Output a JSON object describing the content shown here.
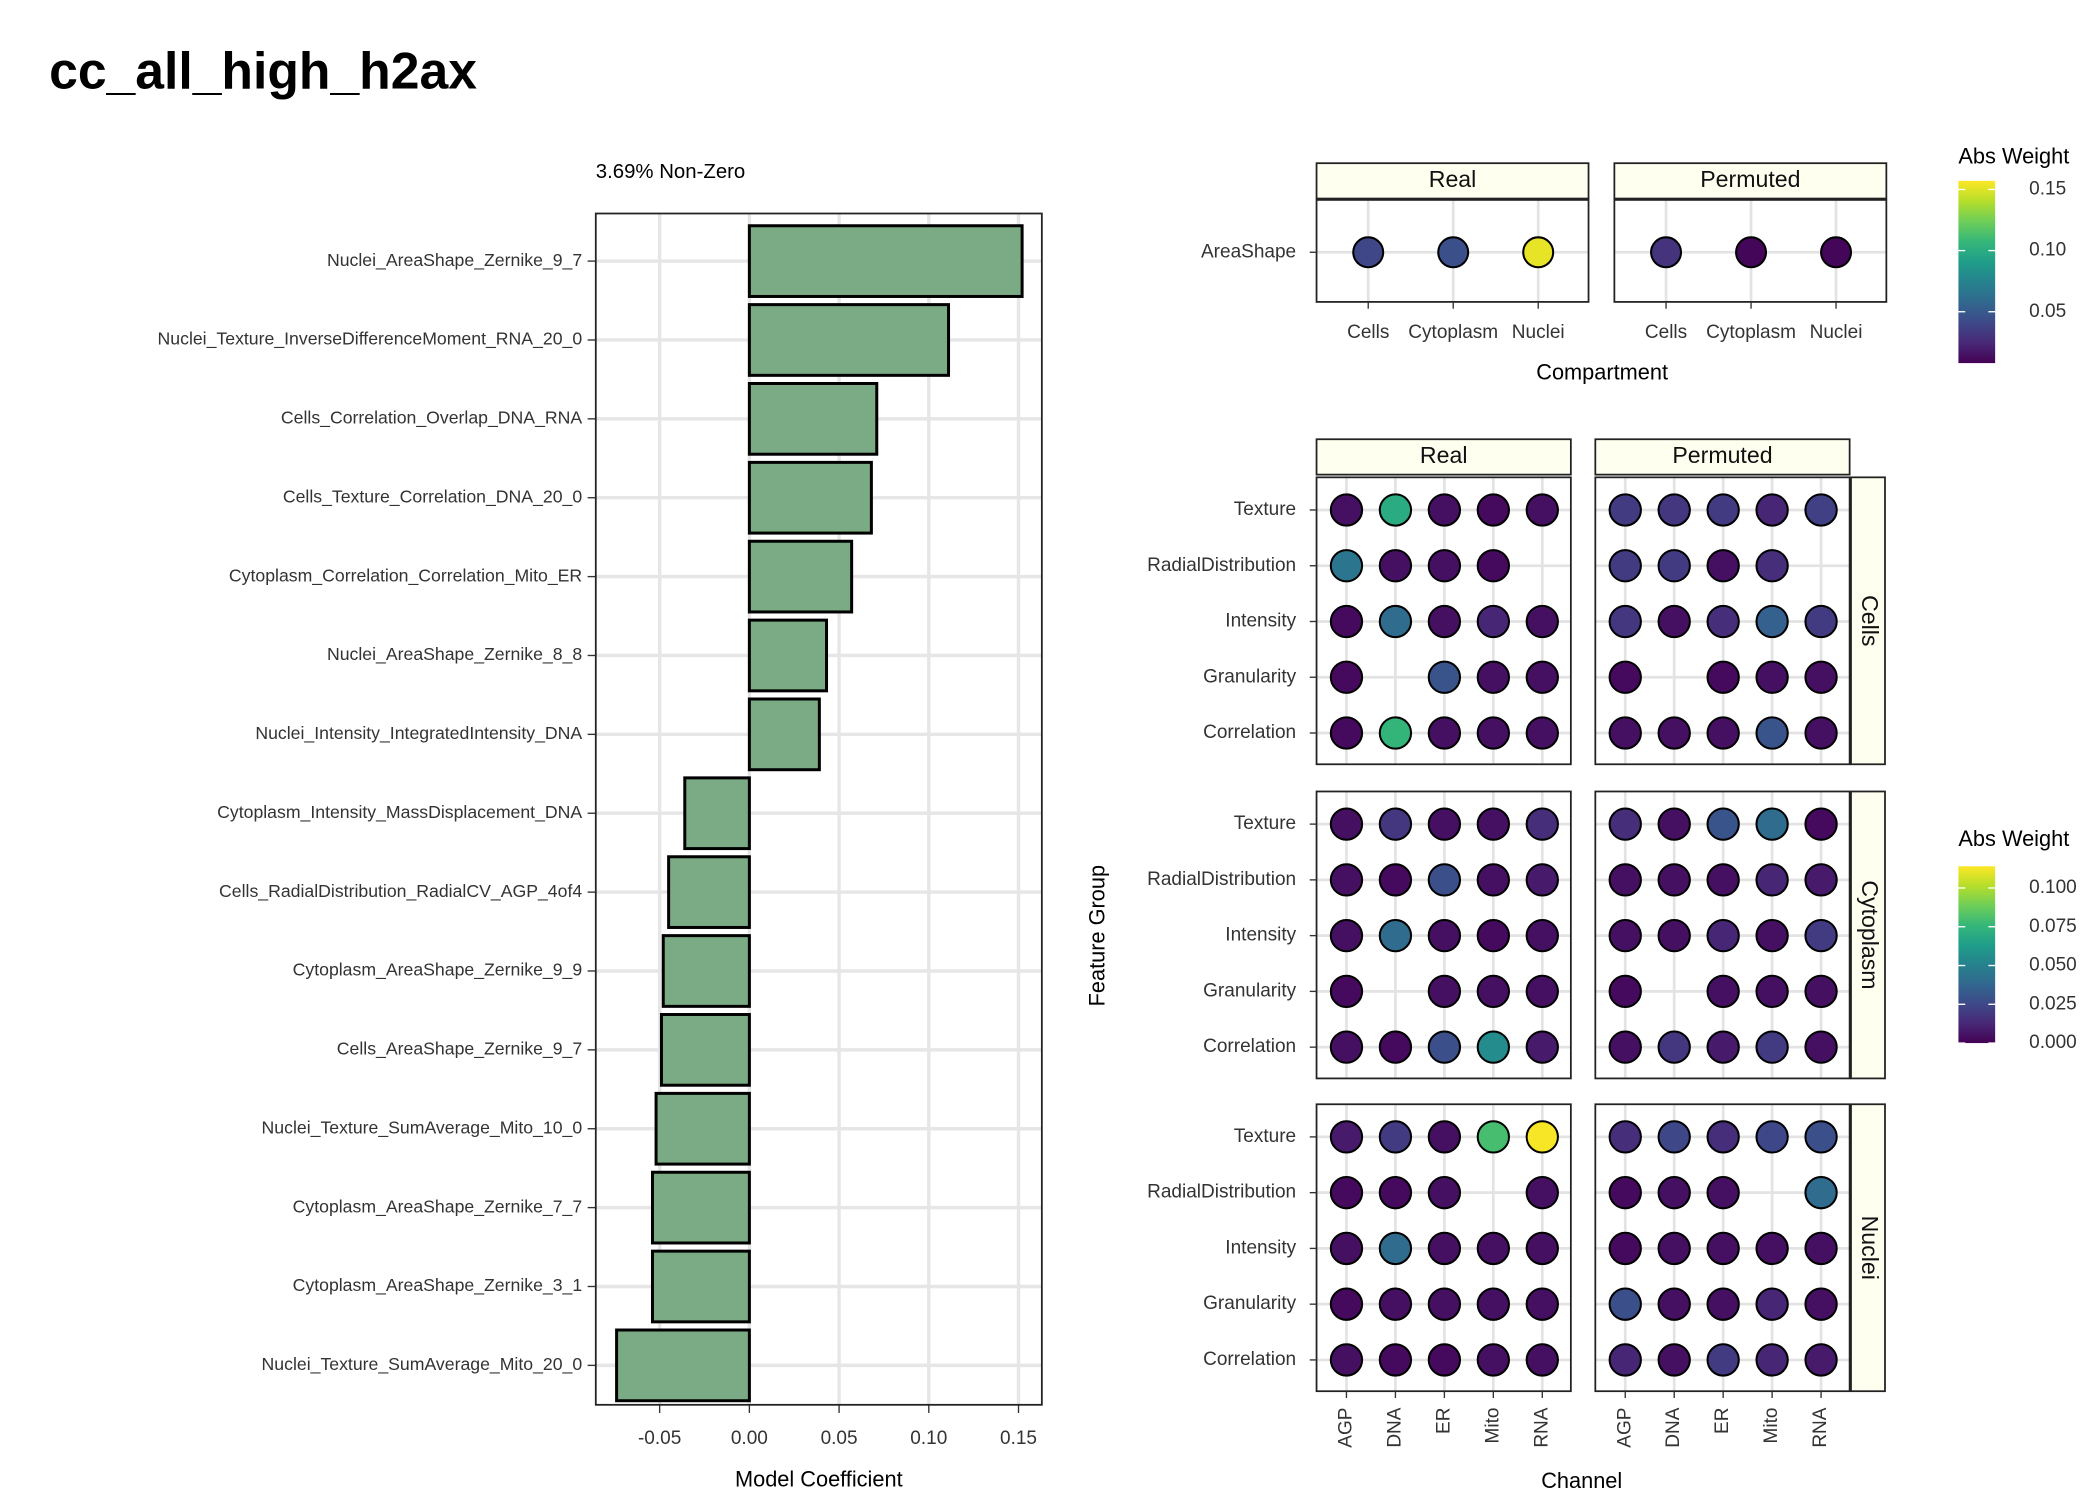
{
  "title": "cc_all_high_h2ax",
  "chart_data": [
    {
      "type": "bar",
      "orientation": "horizontal",
      "subtitle": "3.69% Non-Zero",
      "x_label": "Model Coefficient",
      "categories": [
        "Nuclei_AreaShape_Zernike_9_7",
        "Nuclei_Texture_InverseDifferenceMoment_RNA_20_0",
        "Cells_Correlation_Overlap_DNA_RNA",
        "Cells_Texture_Correlation_DNA_20_0",
        "Cytoplasm_Correlation_Correlation_Mito_ER",
        "Nuclei_AreaShape_Zernike_8_8",
        "Nuclei_Intensity_IntegratedIntensity_DNA",
        "Cytoplasm_Intensity_MassDisplacement_DNA",
        "Cells_RadialDistribution_RadialCV_AGP_4of4",
        "Cytoplasm_AreaShape_Zernike_9_9",
        "Cells_AreaShape_Zernike_9_7",
        "Nuclei_Texture_SumAverage_Mito_10_0",
        "Cytoplasm_AreaShape_Zernike_7_7",
        "Cytoplasm_AreaShape_Zernike_3_1",
        "Nuclei_Texture_SumAverage_Mito_20_0"
      ],
      "values": [
        0.152,
        0.111,
        0.071,
        0.068,
        0.057,
        0.043,
        0.039,
        -0.036,
        -0.045,
        -0.048,
        -0.049,
        -0.052,
        -0.054,
        -0.054,
        -0.074
      ],
      "color": "#7aab84",
      "xlim": [
        -0.0856,
        0.163
      ],
      "xticks": [
        {
          "value": -0.05,
          "label": "-0.05"
        },
        {
          "value": 0,
          "label": "0.00"
        },
        {
          "value": 0.05,
          "label": "0.05"
        },
        {
          "value": 0.1,
          "label": "0.10"
        },
        {
          "value": 0.15,
          "label": "0.15"
        }
      ],
      "grid": true
    },
    {
      "type": "dot",
      "x_label": "Compartment",
      "col_facets": [
        "Real",
        "Permuted"
      ],
      "categories": [
        "Cells",
        "Cytoplasm",
        "Nuclei"
      ],
      "groups": [
        "AreaShape"
      ],
      "values": [
        [
          [
            0.04,
            0.045,
            0.152
          ]
        ],
        [
          [
            0.03,
            0.01,
            0.01
          ]
        ]
      ],
      "color_label": "Abs Weight",
      "colormap": "viridis",
      "clim": [
        0.008,
        0.157
      ],
      "cticks": [
        0.05,
        {
          "value": 0.1,
          "label": "0.10"
        },
        0.15
      ]
    },
    {
      "type": "dot",
      "x_label": "Channel",
      "y_label": "Feature Group",
      "col_facets": [
        "Real",
        "Permuted"
      ],
      "row_facets": [
        "Cells",
        "Cytoplasm",
        "Nuclei"
      ],
      "categories": [
        "AGP",
        "DNA",
        "ER",
        "Mito",
        "RNA"
      ],
      "groups": [
        "Texture",
        "RadialDistribution",
        "Intensity",
        "Granularity",
        "Correlation"
      ],
      "values": [
        [
          [
            [
              0.005,
              0.07,
              0.005,
              0.003,
              0.005
            ],
            [
              0.045,
              0.005,
              0.005,
              0.003,
              null
            ],
            [
              0.003,
              0.04,
              0.005,
              0.012,
              0.005
            ],
            [
              0.003,
              null,
              0.03,
              0.005,
              0.005
            ],
            [
              0.003,
              0.075,
              0.005,
              0.005,
              0.005
            ]
          ],
          [
            [
              0.02,
              0.018,
              0.02,
              0.012,
              0.022
            ],
            [
              0.02,
              0.02,
              0.005,
              0.015,
              null
            ],
            [
              0.018,
              0.005,
              0.015,
              0.035,
              0.02
            ],
            [
              0.003,
              null,
              0.003,
              0.005,
              0.005
            ],
            [
              0.005,
              0.005,
              0.005,
              0.03,
              0.005
            ]
          ]
        ],
        [
          [
            [
              0.005,
              0.018,
              0.005,
              0.005,
              0.015
            ],
            [
              0.005,
              0.003,
              0.028,
              0.005,
              0.008
            ],
            [
              0.005,
              0.04,
              0.005,
              0.003,
              0.005
            ],
            [
              0.003,
              null,
              0.005,
              0.005,
              0.005
            ],
            [
              0.005,
              0.003,
              0.028,
              0.055,
              0.008
            ]
          ],
          [
            [
              0.015,
              0.005,
              0.03,
              0.04,
              0.003
            ],
            [
              0.005,
              0.005,
              0.005,
              0.012,
              0.008
            ],
            [
              0.005,
              0.005,
              0.012,
              0.005,
              0.02
            ],
            [
              0.003,
              null,
              0.005,
              0.005,
              0.005
            ],
            [
              0.005,
              0.018,
              0.008,
              0.02,
              0.005
            ]
          ]
        ],
        [
          [
            [
              0.008,
              0.02,
              0.005,
              0.08,
              0.113
            ],
            [
              0.003,
              0.003,
              0.005,
              null,
              0.005
            ],
            [
              0.005,
              0.04,
              0.005,
              0.005,
              0.005
            ],
            [
              0.003,
              0.005,
              0.005,
              0.005,
              0.005
            ],
            [
              0.005,
              0.003,
              0.003,
              0.005,
              0.005
            ]
          ],
          [
            [
              0.015,
              0.025,
              0.015,
              0.025,
              0.028
            ],
            [
              0.003,
              0.005,
              0.005,
              null,
              0.04
            ],
            [
              0.003,
              0.005,
              0.005,
              0.005,
              0.005
            ],
            [
              0.028,
              0.005,
              0.005,
              0.012,
              0.005
            ],
            [
              0.012,
              0.005,
              0.02,
              0.012,
              0.008
            ]
          ]
        ]
      ],
      "color_label": "Abs Weight",
      "colormap": "viridis",
      "clim": [
        0,
        0.114
      ],
      "cticks": [
        {
          "value": 0,
          "label": "0.000"
        },
        {
          "value": 0.025,
          "label": "0.025"
        },
        {
          "value": 0.05,
          "label": "0.050"
        },
        {
          "value": 0.075,
          "label": "0.075"
        },
        {
          "value": 0.1,
          "label": "0.100"
        }
      ]
    }
  ]
}
